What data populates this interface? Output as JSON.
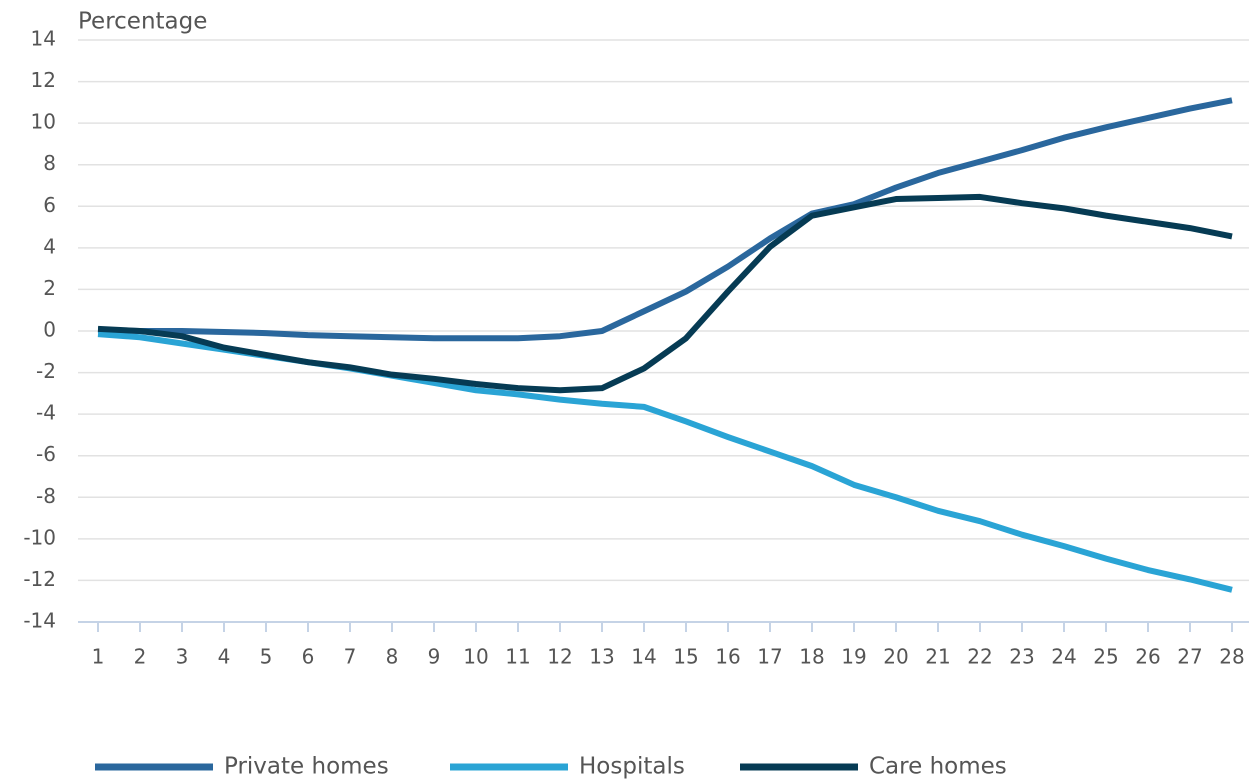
{
  "chart_data": {
    "type": "line",
    "y_label": "Percentage",
    "x": [
      1,
      2,
      3,
      4,
      5,
      6,
      7,
      8,
      9,
      10,
      11,
      12,
      13,
      14,
      15,
      16,
      17,
      18,
      19,
      20,
      21,
      22,
      23,
      24,
      25,
      26,
      27,
      28
    ],
    "xlim": [
      1,
      28
    ],
    "xticks": [
      1,
      2,
      3,
      4,
      5,
      6,
      7,
      8,
      9,
      10,
      11,
      12,
      13,
      14,
      15,
      16,
      17,
      18,
      19,
      20,
      21,
      22,
      23,
      24,
      25,
      26,
      27,
      28
    ],
    "ylim": [
      -14,
      14
    ],
    "yticks": [
      -14,
      -12,
      -10,
      -8,
      -6,
      -4,
      -2,
      0,
      2,
      4,
      6,
      8,
      10,
      12,
      14
    ],
    "grid": true,
    "legend": "bottom",
    "series": [
      {
        "name": "Private homes",
        "color": "#2a679d",
        "values": [
          0.05,
          0,
          0,
          -0.05,
          -0.1,
          -0.2,
          -0.25,
          -0.3,
          -0.35,
          -0.35,
          -0.35,
          -0.25,
          0,
          0.95,
          1.9,
          3.1,
          4.45,
          5.65,
          6.1,
          6.9,
          7.6,
          8.15,
          8.7,
          9.3,
          9.8,
          10.25,
          10.7,
          11.1
        ]
      },
      {
        "name": "Hospitals",
        "color": "#2aa4d5",
        "values": [
          -0.15,
          -0.3,
          -0.6,
          -0.9,
          -1.2,
          -1.5,
          -1.8,
          -2.15,
          -2.5,
          -2.85,
          -3.05,
          -3.3,
          -3.5,
          -3.65,
          -4.35,
          -5.1,
          -5.8,
          -6.5,
          -7.4,
          -8.0,
          -8.65,
          -9.15,
          -9.8,
          -10.35,
          -10.95,
          -11.5,
          -11.95,
          -12.45
        ]
      },
      {
        "name": "Care homes",
        "color": "#063b54",
        "values": [
          0.1,
          0,
          -0.25,
          -0.8,
          -1.15,
          -1.5,
          -1.75,
          -2.1,
          -2.3,
          -2.55,
          -2.75,
          -2.85,
          -2.75,
          -1.8,
          -0.35,
          1.9,
          4.05,
          5.55,
          5.95,
          6.35,
          6.4,
          6.45,
          6.15,
          5.9,
          5.55,
          5.25,
          4.95,
          4.55
        ]
      }
    ]
  }
}
